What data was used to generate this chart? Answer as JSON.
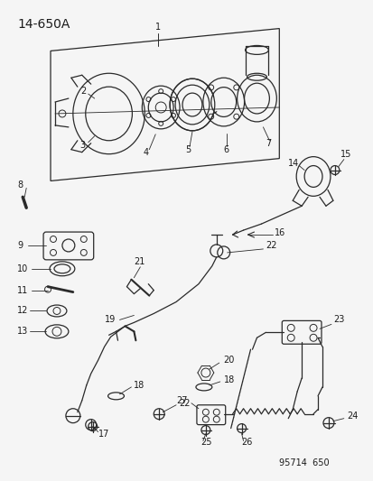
{
  "title": "14-650A",
  "footer": "95714  650",
  "background_color": "#f5f5f5",
  "line_color": "#2a2a2a",
  "text_color": "#1a1a1a",
  "fig_width": 4.14,
  "fig_height": 5.33,
  "dpi": 100
}
